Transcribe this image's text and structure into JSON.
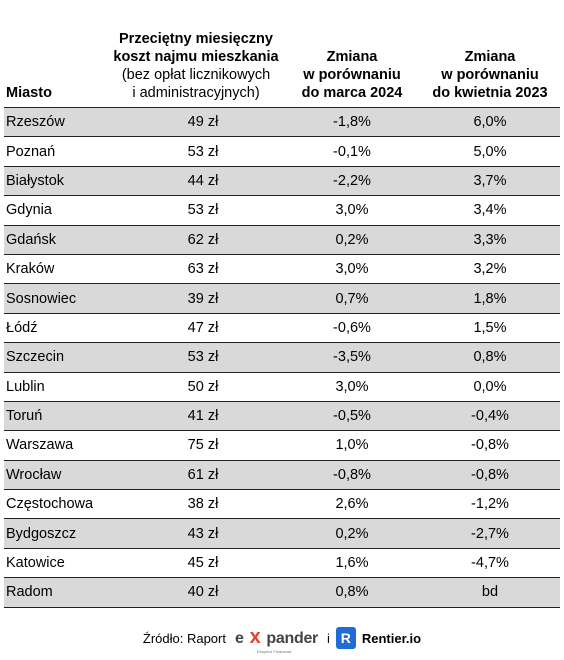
{
  "headers": {
    "city": "Miasto",
    "cost_line1": "Przeciętny miesięczny",
    "cost_line2": "koszt najmu mieszkania",
    "cost_line3": "(bez opłat licznikowych",
    "cost_line4": "i administracyjnych)",
    "change_march_line1": "Zmiana",
    "change_march_line2": "w porównaniu",
    "change_march_line3": "do marca 2024",
    "change_april_line1": "Zmiana",
    "change_april_line2": "w porównaniu",
    "change_april_line3": "do kwietnia 2023"
  },
  "rows": [
    [
      "Rzeszów",
      "49 zł",
      "-1,8%",
      "6,0%"
    ],
    [
      "Poznań",
      "53 zł",
      "-0,1%",
      "5,0%"
    ],
    [
      "Białystok",
      "44 zł",
      "-2,2%",
      "3,7%"
    ],
    [
      "Gdynia",
      "53 zł",
      "3,0%",
      "3,4%"
    ],
    [
      "Gdańsk",
      "62 zł",
      "0,2%",
      "3,3%"
    ],
    [
      "Kraków",
      "63 zł",
      "3,0%",
      "3,2%"
    ],
    [
      "Sosnowiec",
      "39 zł",
      "0,7%",
      "1,8%"
    ],
    [
      "Łódź",
      "47 zł",
      "-0,6%",
      "1,5%"
    ],
    [
      "Szczecin",
      "53 zł",
      "-3,5%",
      "0,8%"
    ],
    [
      "Lublin",
      "50 zł",
      "3,0%",
      "0,0%"
    ],
    [
      "Toruń",
      "41 zł",
      "-0,5%",
      "-0,4%"
    ],
    [
      "Warszawa",
      "75 zł",
      "1,0%",
      "-0,8%"
    ],
    [
      "Wrocław",
      "61 zł",
      "-0,8%",
      "-0,8%"
    ],
    [
      "Częstochowa",
      "38 zł",
      "2,6%",
      "-1,2%"
    ],
    [
      "Bydgoszcz",
      "43 zł",
      "0,2%",
      "-2,7%"
    ],
    [
      "Katowice",
      "45 zł",
      "1,6%",
      "-4,7%"
    ],
    [
      "Radom",
      "40 zł",
      "0,8%",
      "bd"
    ]
  ],
  "footer": {
    "source_label": "Źródło: Raport",
    "expander_logo_e": "e",
    "expander_logo_x": "x",
    "expander_logo_rest": "pander",
    "expander_tagline": "Eksperci Finansowi",
    "conjunction": "i",
    "rentier_logo_letter": "R",
    "rentier_text": "Rentier.io"
  },
  "colors": {
    "row_shade": "#d9d9d9",
    "expander_accent": "#e5412f",
    "rentier_blue": "#1f6dd4"
  }
}
